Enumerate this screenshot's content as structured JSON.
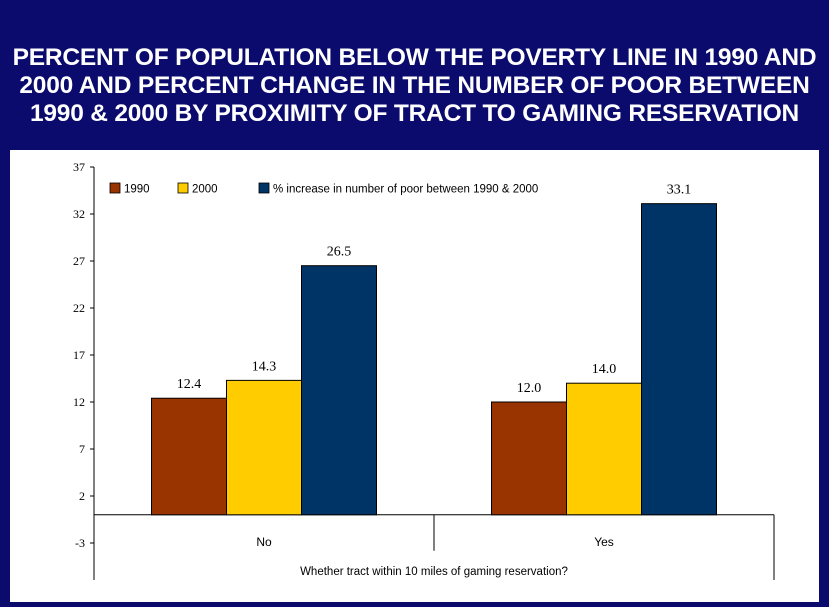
{
  "title": "PERCENT OF POPULATION BELOW THE POVERTY LINE IN 1990 AND 2000 AND PERCENT CHANGE IN THE NUMBER OF POOR BETWEEN 1990 & 2000 BY PROXIMITY OF TRACT TO GAMING RESERVATION",
  "colors": {
    "background": "#0b0b6e",
    "panel": "#ffffff",
    "series_1990": "#993300",
    "series_2000": "#ffcc00",
    "series_increase": "#003366"
  },
  "chart_data": {
    "type": "bar",
    "title": "PERCENT OF POPULATION BELOW THE POVERTY LINE IN 1990 AND 2000 AND PERCENT CHANGE IN THE NUMBER OF POOR BETWEEN 1990 & 2000 BY PROXIMITY OF TRACT TO GAMING RESERVATION",
    "categories": [
      "No",
      "Yes"
    ],
    "xlabel": "Whether tract within 10 miles of gaming reservation?",
    "ylabel": "",
    "ylim": [
      -3,
      37
    ],
    "yticks": [
      37,
      32,
      27,
      22,
      17,
      12,
      7,
      2,
      -3
    ],
    "grid": false,
    "legend_position": "top-left",
    "series": [
      {
        "name": "1990",
        "values": [
          12.4,
          12.0
        ],
        "labels": [
          "12.4",
          "12.0"
        ],
        "color": "#993300"
      },
      {
        "name": "2000",
        "values": [
          14.3,
          14.0
        ],
        "labels": [
          "14.3",
          "14.0"
        ],
        "color": "#ffcc00"
      },
      {
        "name": "% increase in number of poor between 1990 & 2000",
        "values": [
          26.5,
          33.1
        ],
        "labels": [
          "26.5",
          "33.1"
        ],
        "color": "#003366"
      }
    ]
  }
}
